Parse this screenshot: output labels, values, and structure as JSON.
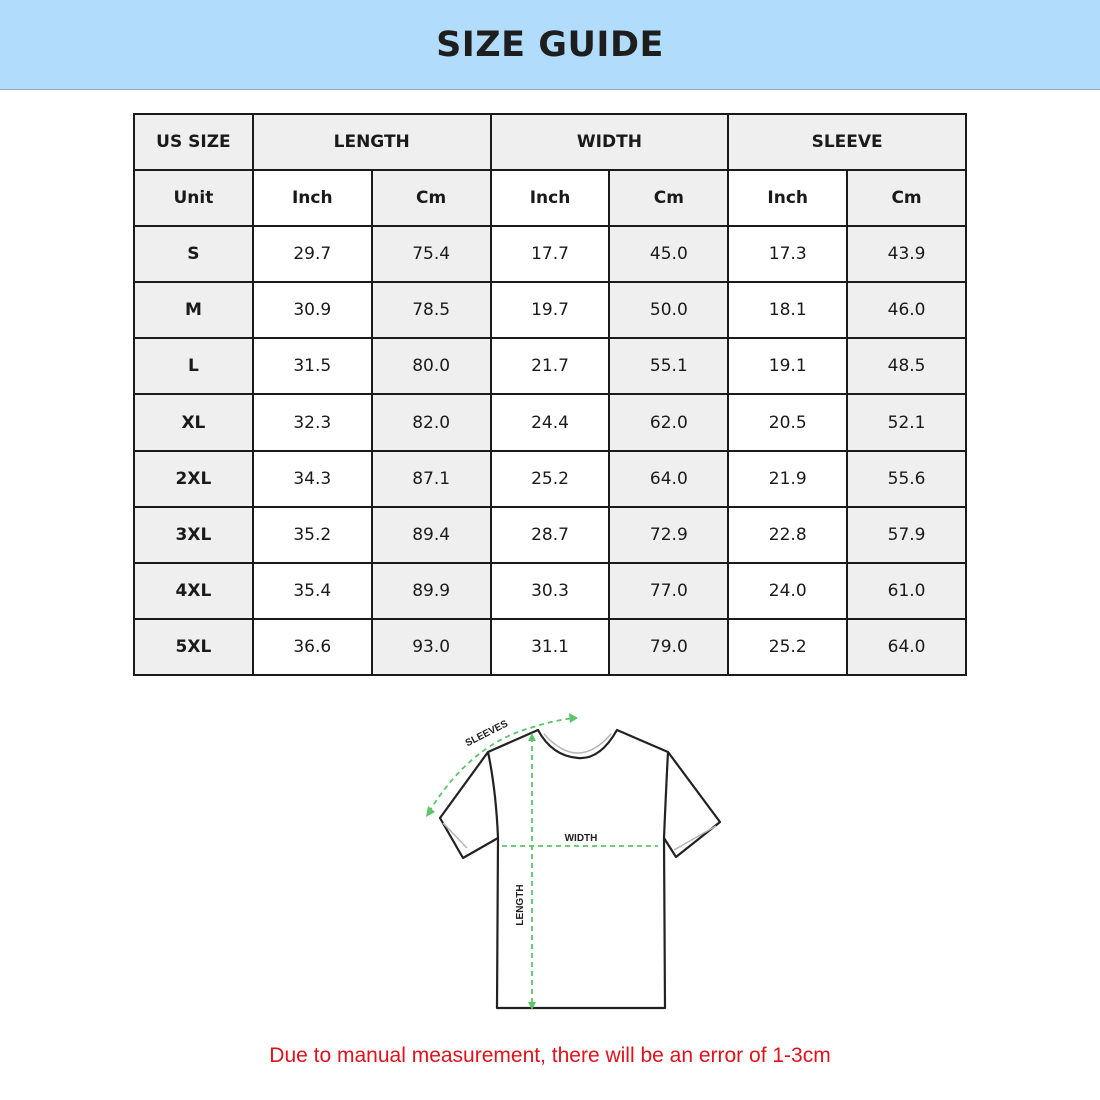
{
  "header": {
    "title": "SIZE GUIDE",
    "background": "#b1dcfb"
  },
  "table": {
    "group_headers": [
      "US SIZE",
      "LENGTH",
      "WIDTH",
      "SLEEVE"
    ],
    "unit_row": [
      "Unit",
      "Inch",
      "Cm",
      "Inch",
      "Cm",
      "Inch",
      "Cm"
    ],
    "rows": [
      [
        "S",
        "29.7",
        "75.4",
        "17.7",
        "45.0",
        "17.3",
        "43.9"
      ],
      [
        "M",
        "30.9",
        "78.5",
        "19.7",
        "50.0",
        "18.1",
        "46.0"
      ],
      [
        "L",
        "31.5",
        "80.0",
        "21.7",
        "55.1",
        "19.1",
        "48.5"
      ],
      [
        "XL",
        "32.3",
        "82.0",
        "24.4",
        "62.0",
        "20.5",
        "52.1"
      ],
      [
        "2XL",
        "34.3",
        "87.1",
        "25.2",
        "64.0",
        "21.9",
        "55.6"
      ],
      [
        "3XL",
        "35.2",
        "89.4",
        "28.7",
        "72.9",
        "22.8",
        "57.9"
      ],
      [
        "4XL",
        "35.4",
        "89.9",
        "30.3",
        "77.0",
        "24.0",
        "61.0"
      ],
      [
        "5XL",
        "36.6",
        "93.0",
        "31.1",
        "79.0",
        "25.2",
        "64.0"
      ]
    ]
  },
  "diagram": {
    "labels": {
      "sleeves": "SLEEVES",
      "width": "WIDTH",
      "length": "LENGTH"
    },
    "arrow_color": "#5cc46a"
  },
  "note": {
    "text": "Due to manual measurement, there will be an error of 1-3cm",
    "color": "#e0121b"
  }
}
